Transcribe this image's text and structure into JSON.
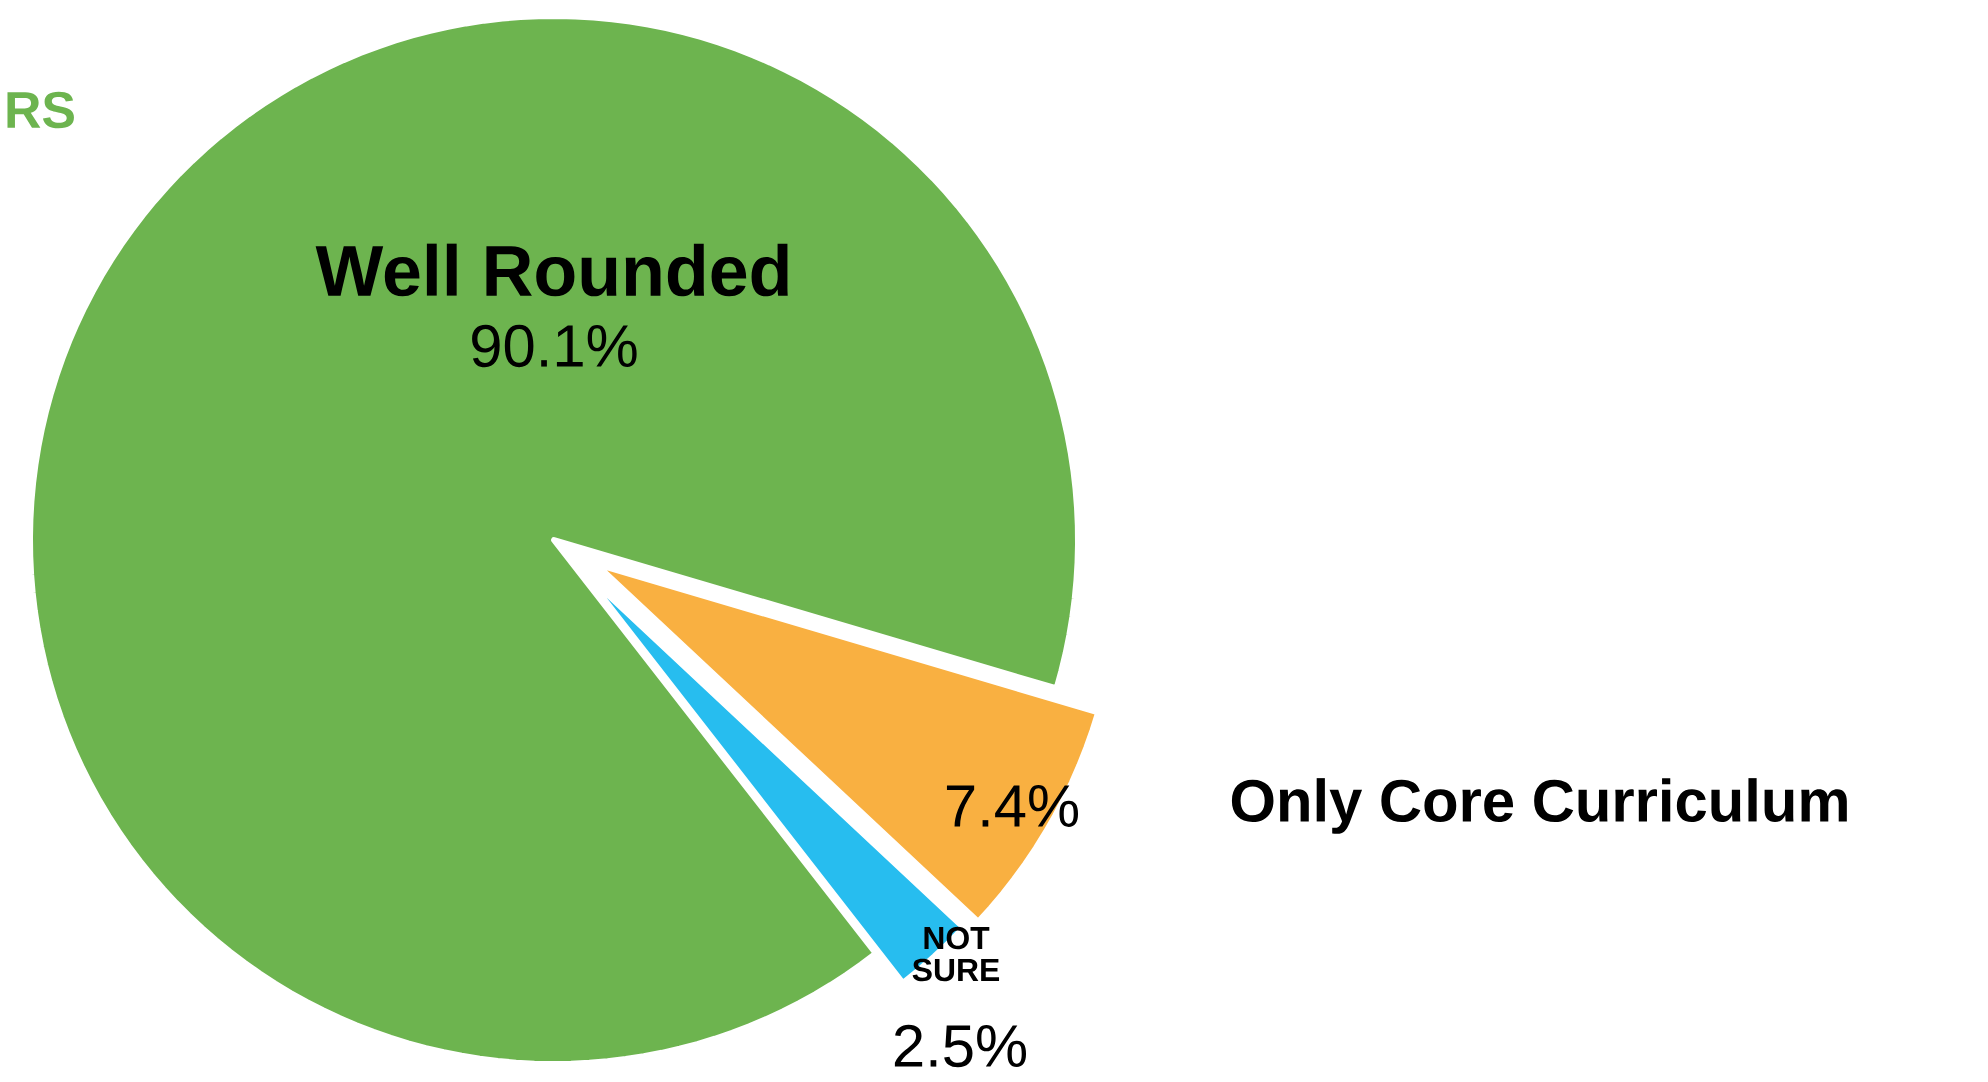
{
  "chart_data": {
    "type": "pie",
    "categories": [
      "Well Rounded",
      "Only Core Curriculum",
      "NOT SURE"
    ],
    "values": [
      90.1,
      7.4,
      2.5
    ],
    "value_labels": [
      "90.1%",
      "7.4%",
      "2.5%"
    ],
    "colors": [
      "#6db44f",
      "#f9b041",
      "#27bdef"
    ],
    "annotations": [
      "RS"
    ]
  }
}
